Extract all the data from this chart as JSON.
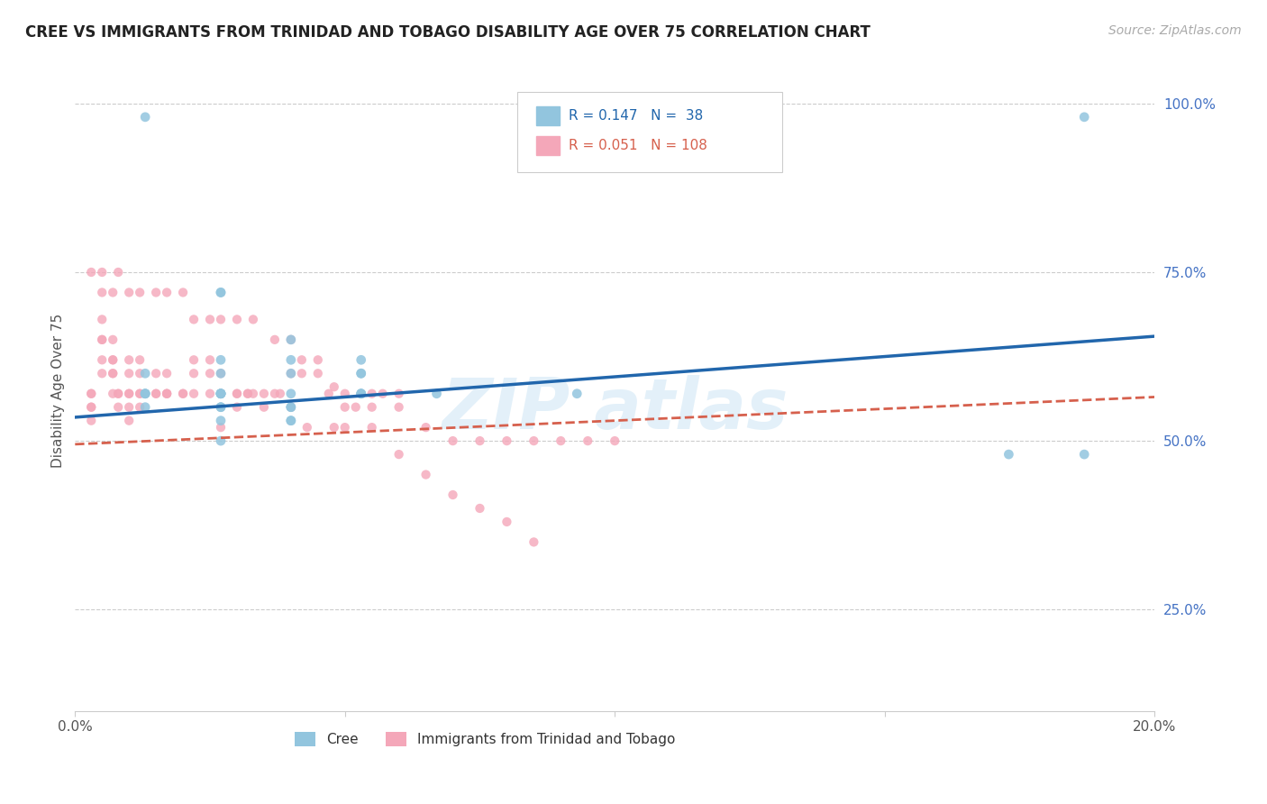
{
  "title": "CREE VS IMMIGRANTS FROM TRINIDAD AND TOBAGO DISABILITY AGE OVER 75 CORRELATION CHART",
  "source": "Source: ZipAtlas.com",
  "ylabel": "Disability Age Over 75",
  "xlim": [
    0.0,
    0.2
  ],
  "ylim": [
    0.1,
    1.05
  ],
  "xticks": [
    0.0,
    0.05,
    0.1,
    0.15,
    0.2
  ],
  "xticklabels": [
    "0.0%",
    "",
    "",
    "",
    "20.0%"
  ],
  "yticks": [
    0.25,
    0.5,
    0.75,
    1.0
  ],
  "yticklabels": [
    "25.0%",
    "50.0%",
    "75.0%",
    "100.0%"
  ],
  "blue_color": "#92c5de",
  "pink_color": "#f4a7b9",
  "blue_line_color": "#2166ac",
  "pink_line_color": "#d6604d",
  "cree_label": "Cree",
  "immigrants_label": "Immigrants from Trinidad and Tobago",
  "cree_scatter_x": [
    0.013,
    0.027,
    0.04,
    0.187,
    0.053,
    0.027,
    0.04,
    0.027,
    0.013,
    0.093,
    0.053,
    0.067,
    0.04,
    0.027,
    0.04,
    0.027,
    0.013,
    0.027,
    0.053,
    0.027,
    0.04,
    0.053,
    0.027,
    0.04,
    0.027,
    0.013,
    0.053,
    0.027,
    0.013,
    0.027,
    0.04,
    0.053,
    0.027,
    0.04,
    0.013,
    0.027,
    0.187,
    0.173
  ],
  "cree_scatter_y": [
    0.98,
    0.72,
    0.65,
    0.98,
    0.6,
    0.72,
    0.62,
    0.57,
    0.55,
    0.57,
    0.57,
    0.57,
    0.53,
    0.55,
    0.55,
    0.57,
    0.57,
    0.55,
    0.57,
    0.57,
    0.55,
    0.57,
    0.53,
    0.6,
    0.57,
    0.57,
    0.62,
    0.57,
    0.6,
    0.62,
    0.57,
    0.6,
    0.5,
    0.53,
    0.57,
    0.6,
    0.48,
    0.48
  ],
  "imm_scatter_x": [
    0.003,
    0.003,
    0.003,
    0.003,
    0.003,
    0.005,
    0.005,
    0.005,
    0.005,
    0.005,
    0.005,
    0.007,
    0.007,
    0.007,
    0.007,
    0.007,
    0.007,
    0.008,
    0.008,
    0.008,
    0.01,
    0.01,
    0.01,
    0.01,
    0.01,
    0.01,
    0.012,
    0.012,
    0.012,
    0.012,
    0.012,
    0.015,
    0.015,
    0.015,
    0.017,
    0.017,
    0.017,
    0.017,
    0.02,
    0.02,
    0.022,
    0.022,
    0.022,
    0.025,
    0.025,
    0.025,
    0.027,
    0.03,
    0.03,
    0.032,
    0.032,
    0.035,
    0.035,
    0.037,
    0.04,
    0.042,
    0.045,
    0.047,
    0.05,
    0.052,
    0.055,
    0.057,
    0.06,
    0.027,
    0.03,
    0.033,
    0.038,
    0.04,
    0.043,
    0.048,
    0.05,
    0.055,
    0.06,
    0.065,
    0.07,
    0.075,
    0.08,
    0.085,
    0.09,
    0.095,
    0.1,
    0.003,
    0.005,
    0.007,
    0.008,
    0.01,
    0.012,
    0.015,
    0.017,
    0.02,
    0.022,
    0.025,
    0.027,
    0.03,
    0.033,
    0.037,
    0.04,
    0.042,
    0.045,
    0.048,
    0.05,
    0.055,
    0.06,
    0.065,
    0.07,
    0.075,
    0.08,
    0.085
  ],
  "imm_scatter_y": [
    0.57,
    0.55,
    0.57,
    0.55,
    0.53,
    0.72,
    0.65,
    0.6,
    0.62,
    0.65,
    0.68,
    0.62,
    0.57,
    0.6,
    0.62,
    0.65,
    0.6,
    0.57,
    0.55,
    0.57,
    0.6,
    0.62,
    0.57,
    0.57,
    0.55,
    0.53,
    0.62,
    0.6,
    0.57,
    0.57,
    0.55,
    0.57,
    0.57,
    0.6,
    0.57,
    0.57,
    0.57,
    0.6,
    0.57,
    0.57,
    0.57,
    0.6,
    0.62,
    0.62,
    0.6,
    0.57,
    0.6,
    0.57,
    0.57,
    0.57,
    0.57,
    0.57,
    0.55,
    0.57,
    0.6,
    0.6,
    0.6,
    0.57,
    0.57,
    0.55,
    0.57,
    0.57,
    0.57,
    0.52,
    0.55,
    0.57,
    0.57,
    0.55,
    0.52,
    0.52,
    0.52,
    0.55,
    0.55,
    0.52,
    0.5,
    0.5,
    0.5,
    0.5,
    0.5,
    0.5,
    0.5,
    0.75,
    0.75,
    0.72,
    0.75,
    0.72,
    0.72,
    0.72,
    0.72,
    0.72,
    0.68,
    0.68,
    0.68,
    0.68,
    0.68,
    0.65,
    0.65,
    0.62,
    0.62,
    0.58,
    0.55,
    0.52,
    0.48,
    0.45,
    0.42,
    0.4,
    0.38,
    0.35
  ],
  "title_fontsize": 12,
  "axis_label_fontsize": 11,
  "tick_fontsize": 11,
  "source_fontsize": 10,
  "legend_blue_text_color": "#2166ac",
  "legend_pink_text_color": "#d6604d"
}
